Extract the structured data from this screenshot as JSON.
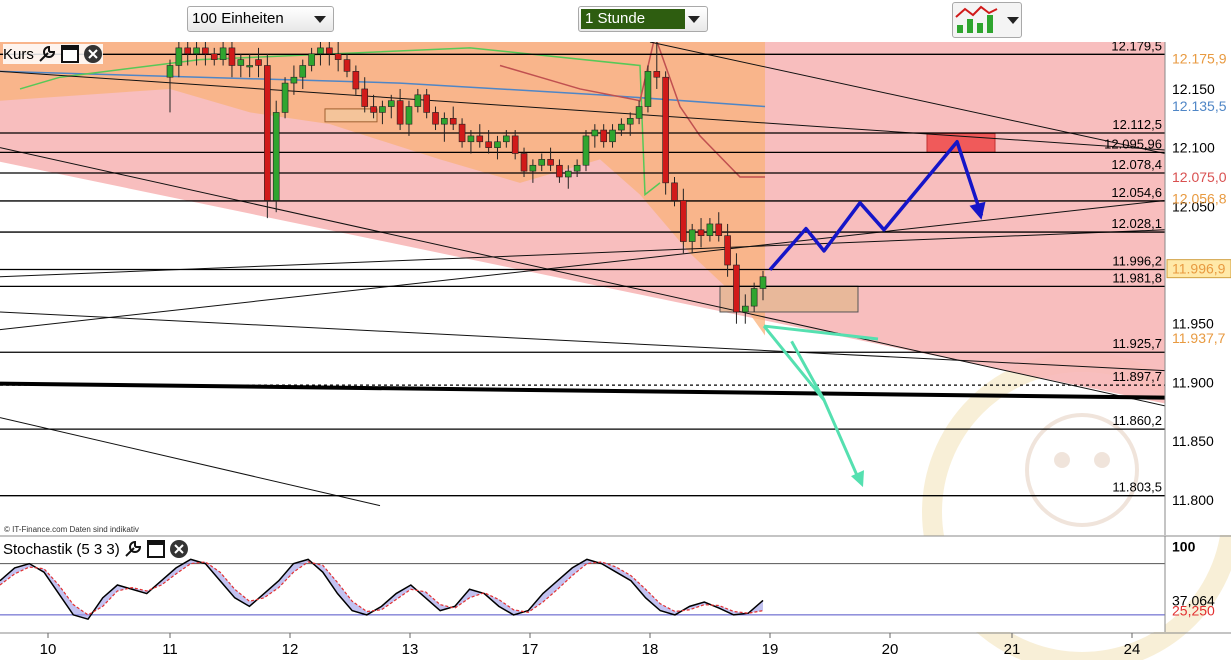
{
  "toolbar": {
    "units_label": "100 Einheiten",
    "interval_label": "1 Stunde"
  },
  "panels": {
    "price_label": "Kurs",
    "stoch_label": "Stochastik (5 3 3)",
    "credit": "© IT-Finance.com  Daten sind indikativ"
  },
  "colors": {
    "channel_fill": "#f7b7b7",
    "bollinger_fill": "#f9b27a",
    "candle_up": "#2fa52f",
    "candle_down": "#d11a1a",
    "forecast_up": "#1515c8",
    "forecast_down": "#55e0b0",
    "stoch_k": "#000000",
    "stoch_d": "#e23030",
    "ma_blue": "#4f86c6",
    "ma_green": "#57c857",
    "price_marker": "#d9a070"
  },
  "chart_data": [
    {
      "type": "candlestick",
      "ylim": [
        11.77,
        12.19
      ],
      "x_ticks": [
        "10",
        "11",
        "12",
        "13",
        "17",
        "18",
        "19",
        "20",
        "21",
        "24"
      ],
      "y_ticks": [
        "12.150",
        "12.100",
        "12.050",
        "11.950",
        "11.900",
        "11.850",
        "11.800"
      ],
      "levels": [
        {
          "value": 12.1795,
          "label": "12.179,5"
        },
        {
          "value": 12.1125,
          "label": "12.112,5"
        },
        {
          "value": 12.096,
          "label": "12.095,96"
        },
        {
          "value": 12.0784,
          "label": "12.078,4"
        },
        {
          "value": 12.0546,
          "label": "12.054,6"
        },
        {
          "value": 12.0281,
          "label": "12.028,1"
        },
        {
          "value": 11.9962,
          "label": "11.996,2"
        },
        {
          "value": 11.9818,
          "label": "11.981,8"
        },
        {
          "value": 11.9257,
          "label": "11.925,7"
        },
        {
          "value": 11.8977,
          "label": "11.897,7"
        },
        {
          "value": 11.8602,
          "label": "11.860,2"
        },
        {
          "value": 11.8035,
          "label": "11.803,5"
        }
      ],
      "axis_markers": [
        {
          "value": 12.1759,
          "label": "12.175,9",
          "color": "#e89a40"
        },
        {
          "value": 12.1355,
          "label": "12.135,5",
          "color": "#4f86c6"
        },
        {
          "value": 12.075,
          "label": "12.075,0",
          "color": "#d95050"
        },
        {
          "value": 12.0568,
          "label": "12.056,8",
          "color": "#e89a40"
        },
        {
          "value": 11.9969,
          "label": "11.996,9",
          "color": "#e89a40",
          "fill": "#ffe9a8"
        },
        {
          "value": 11.9377,
          "label": "11.937,7",
          "color": "#e89a40"
        }
      ],
      "candles": [
        [
          12.16,
          12.175,
          12.13,
          12.17
        ],
        [
          12.17,
          12.19,
          12.16,
          12.185
        ],
        [
          12.185,
          12.19,
          12.17,
          12.18
        ],
        [
          12.18,
          12.19,
          12.17,
          12.185
        ],
        [
          12.185,
          12.19,
          12.17,
          12.18
        ],
        [
          12.18,
          12.185,
          12.17,
          12.175
        ],
        [
          12.175,
          12.19,
          12.17,
          12.185
        ],
        [
          12.185,
          12.19,
          12.16,
          12.17
        ],
        [
          12.17,
          12.18,
          12.16,
          12.175
        ],
        [
          12.17,
          12.18,
          12.16,
          12.17
        ],
        [
          12.175,
          12.185,
          12.16,
          12.17
        ],
        [
          12.17,
          12.18,
          12.04,
          12.055
        ],
        [
          12.055,
          12.14,
          12.045,
          12.13
        ],
        [
          12.13,
          12.16,
          12.125,
          12.155
        ],
        [
          12.155,
          12.17,
          12.145,
          12.16
        ],
        [
          12.16,
          12.175,
          12.15,
          12.17
        ],
        [
          12.17,
          12.185,
          12.165,
          12.18
        ],
        [
          12.18,
          12.19,
          12.17,
          12.185
        ],
        [
          12.185,
          12.19,
          12.17,
          12.18
        ],
        [
          12.18,
          12.19,
          12.165,
          12.175
        ],
        [
          12.175,
          12.18,
          12.16,
          12.165
        ],
        [
          12.165,
          12.17,
          12.145,
          12.15
        ],
        [
          12.15,
          12.16,
          12.13,
          12.135
        ],
        [
          12.135,
          12.145,
          12.125,
          12.13
        ],
        [
          12.13,
          12.14,
          12.12,
          12.135
        ],
        [
          12.135,
          12.145,
          12.125,
          12.14
        ],
        [
          12.14,
          12.15,
          12.115,
          12.12
        ],
        [
          12.12,
          12.14,
          12.11,
          12.135
        ],
        [
          12.135,
          12.15,
          12.13,
          12.145
        ],
        [
          12.145,
          12.15,
          12.125,
          12.13
        ],
        [
          12.13,
          12.135,
          12.115,
          12.12
        ],
        [
          12.12,
          12.13,
          12.105,
          12.125
        ],
        [
          12.125,
          12.135,
          12.115,
          12.12
        ],
        [
          12.12,
          12.125,
          12.1,
          12.105
        ],
        [
          12.105,
          12.115,
          12.095,
          12.11
        ],
        [
          12.11,
          12.12,
          12.1,
          12.105
        ],
        [
          12.105,
          12.115,
          12.095,
          12.1
        ],
        [
          12.1,
          12.11,
          12.09,
          12.105
        ],
        [
          12.105,
          12.115,
          12.1,
          12.11
        ],
        [
          12.11,
          12.115,
          12.09,
          12.095
        ],
        [
          12.095,
          12.1,
          12.075,
          12.08
        ],
        [
          12.08,
          12.09,
          12.07,
          12.085
        ],
        [
          12.085,
          12.095,
          12.08,
          12.09
        ],
        [
          12.09,
          12.1,
          12.08,
          12.085
        ],
        [
          12.085,
          12.09,
          12.07,
          12.075
        ],
        [
          12.075,
          12.085,
          12.065,
          12.08
        ],
        [
          12.08,
          12.09,
          12.075,
          12.085
        ],
        [
          12.085,
          12.115,
          12.08,
          12.11
        ],
        [
          12.11,
          12.12,
          12.1,
          12.115
        ],
        [
          12.115,
          12.12,
          12.1,
          12.105
        ],
        [
          12.105,
          12.12,
          12.1,
          12.115
        ],
        [
          12.115,
          12.125,
          12.11,
          12.12
        ],
        [
          12.12,
          12.13,
          12.11,
          12.125
        ],
        [
          12.125,
          12.14,
          12.12,
          12.135
        ],
        [
          12.135,
          12.17,
          12.13,
          12.165
        ],
        [
          12.165,
          12.19,
          12.15,
          12.16
        ],
        [
          12.16,
          12.165,
          12.06,
          12.07
        ],
        [
          12.07,
          12.075,
          12.05,
          12.055
        ],
        [
          12.055,
          12.065,
          12.01,
          12.02
        ],
        [
          12.02,
          12.035,
          12.01,
          12.03
        ],
        [
          12.03,
          12.04,
          12.015,
          12.025
        ],
        [
          12.025,
          12.04,
          12.02,
          12.035
        ],
        [
          12.035,
          12.045,
          12.02,
          12.025
        ],
        [
          12.025,
          12.035,
          11.99,
          12.0
        ],
        [
          12.0,
          12.01,
          11.95,
          11.96
        ],
        [
          11.96,
          11.975,
          11.95,
          11.965
        ],
        [
          11.965,
          11.985,
          11.96,
          11.98
        ],
        [
          11.98,
          11.995,
          11.97,
          11.99
        ]
      ],
      "forecast_up_path": [
        [
          19.0,
          11.996
        ],
        [
          19.3,
          12.031
        ],
        [
          19.45,
          12.012
        ],
        [
          19.75,
          12.053
        ],
        [
          19.95,
          12.03
        ],
        [
          20.55,
          12.105
        ],
        [
          20.75,
          12.042
        ]
      ],
      "forecast_down_path": [
        [
          18.95,
          11.948
        ],
        [
          19.45,
          11.885
        ],
        [
          19.75,
          11.815
        ]
      ]
    },
    {
      "type": "line",
      "title": "Stochastik (5 3 3)",
      "ylim": [
        0,
        110
      ],
      "y_ticks": [
        "100"
      ],
      "reference_lines": [
        80,
        20
      ],
      "markers": [
        {
          "value": 37.064,
          "label": "37,064",
          "color": "#000000"
        },
        {
          "value": 25.25,
          "label": "25,250",
          "color": "#e23030"
        }
      ],
      "series": [
        {
          "values": [
            60,
            75,
            80,
            70,
            45,
            20,
            15,
            40,
            55,
            50,
            45,
            60,
            75,
            85,
            80,
            60,
            40,
            30,
            45,
            60,
            80,
            85,
            70,
            45,
            25,
            20,
            30,
            45,
            55,
            40,
            25,
            30,
            50,
            45,
            30,
            20,
            25,
            45,
            60,
            75,
            85,
            80,
            70,
            60,
            40,
            25,
            20,
            30,
            35,
            28,
            20,
            22,
            37
          ]
        },
        {
          "values": [
            55,
            68,
            76,
            74,
            55,
            32,
            20,
            30,
            48,
            52,
            48,
            55,
            68,
            80,
            82,
            70,
            50,
            36,
            40,
            52,
            70,
            82,
            78,
            58,
            36,
            24,
            26,
            38,
            50,
            47,
            32,
            28,
            40,
            46,
            38,
            26,
            23,
            35,
            50,
            66,
            80,
            82,
            76,
            66,
            50,
            33,
            24,
            26,
            32,
            31,
            24,
            22,
            25
          ]
        }
      ]
    }
  ]
}
